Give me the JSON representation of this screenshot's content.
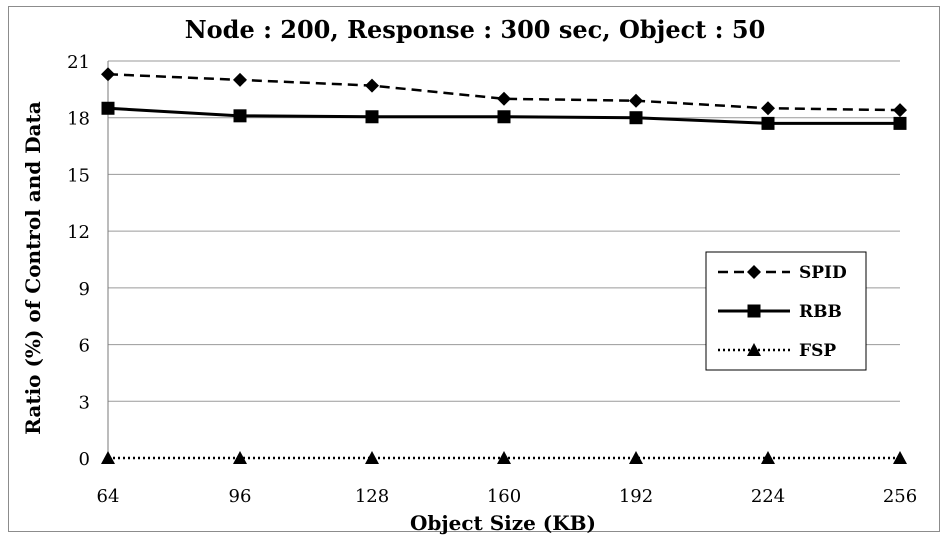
{
  "chart_data": {
    "type": "line",
    "title": "Node : 200, Response : 300 sec, Object : 50",
    "xlabel": "Object Size (KB)",
    "ylabel": "Ratio (%) of Control and Data",
    "categories": [
      "64",
      "96",
      "128",
      "160",
      "192",
      "224",
      "256"
    ],
    "ylim": [
      0,
      21
    ],
    "yticks": [
      "0",
      "3",
      "6",
      "9",
      "12",
      "15",
      "18",
      "21"
    ],
    "grid": "horizontal",
    "legend_position": "right",
    "series": [
      {
        "name": "SPID",
        "values": [
          20.3,
          20.0,
          19.7,
          19.0,
          18.9,
          18.5,
          18.4
        ],
        "marker": "diamond",
        "line": "dashed",
        "color": "#000000"
      },
      {
        "name": "RBB",
        "values": [
          18.5,
          18.1,
          18.05,
          18.05,
          18.0,
          17.7,
          17.7
        ],
        "marker": "square",
        "line": "solid",
        "color": "#000000"
      },
      {
        "name": "FSP",
        "values": [
          0,
          0,
          0,
          0,
          0,
          0,
          0
        ],
        "marker": "triangle",
        "line": "dotted",
        "color": "#000000"
      }
    ]
  }
}
